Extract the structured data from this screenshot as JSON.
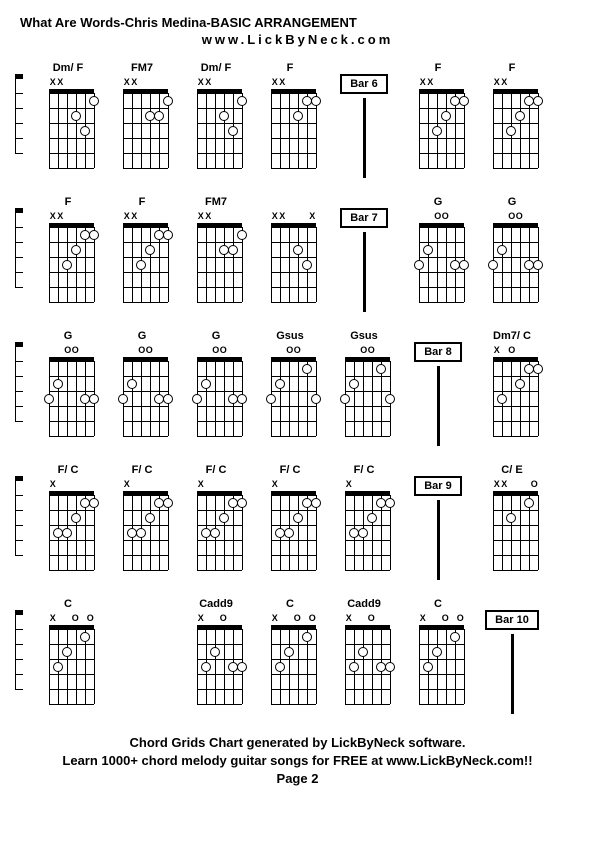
{
  "title": "What Are Words-Chris Medina-BASIC ARRANGEMENT",
  "subtitle": "www.LickByNeck.com",
  "footer_line1": "Chord Grids Chart generated by LickByNeck software.",
  "footer_line2": "Learn 1000+ chord melody guitar songs for FREE at www.LickByNeck.com!!",
  "page_label": "Page 2",
  "grid": {
    "strings": 6,
    "frets": 5,
    "diagram_width": 45,
    "diagram_height": 75
  },
  "rows": [
    {
      "leading_half": true,
      "cells": [
        {
          "type": "chord",
          "name": "Dm/ F",
          "marks": [
            "X",
            "X",
            "",
            "",
            "",
            ""
          ],
          "dots": [
            [
              2,
              0
            ],
            [
              3,
              2
            ],
            [
              4,
              3
            ],
            [
              5,
              1
            ]
          ]
        },
        {
          "type": "chord",
          "name": "FM7",
          "marks": [
            "X",
            "X",
            "",
            "",
            "",
            ""
          ],
          "dots": [
            [
              2,
              0
            ],
            [
              3,
              2
            ],
            [
              4,
              2
            ],
            [
              5,
              1
            ]
          ]
        },
        {
          "type": "chord",
          "name": "Dm/ F",
          "marks": [
            "X",
            "X",
            "",
            "",
            "",
            ""
          ],
          "dots": [
            [
              2,
              0
            ],
            [
              3,
              2
            ],
            [
              4,
              3
            ],
            [
              5,
              1
            ]
          ]
        },
        {
          "type": "chord",
          "name": "F",
          "marks": [
            "X",
            "X",
            "",
            "",
            "",
            ""
          ],
          "dots": [
            [
              2,
              0
            ],
            [
              3,
              2
            ],
            [
              4,
              1
            ],
            [
              5,
              1
            ]
          ]
        },
        {
          "type": "bar",
          "label": "Bar 6"
        },
        {
          "type": "chord",
          "name": "F",
          "marks": [
            "X",
            "X",
            "",
            "",
            "",
            ""
          ],
          "dots": [
            [
              2,
              3
            ],
            [
              3,
              2
            ],
            [
              4,
              1
            ],
            [
              5,
              1
            ]
          ]
        },
        {
          "type": "chord",
          "name": "F",
          "marks": [
            "X",
            "X",
            "",
            "",
            "",
            ""
          ],
          "dots": [
            [
              2,
              3
            ],
            [
              3,
              2
            ],
            [
              4,
              1
            ],
            [
              5,
              1
            ]
          ]
        }
      ]
    },
    {
      "leading_half": true,
      "cells": [
        {
          "type": "chord",
          "name": "F",
          "marks": [
            "X",
            "X",
            "",
            "",
            "",
            ""
          ],
          "dots": [
            [
              2,
              3
            ],
            [
              3,
              2
            ],
            [
              4,
              1
            ],
            [
              5,
              1
            ]
          ]
        },
        {
          "type": "chord",
          "name": "F",
          "marks": [
            "X",
            "X",
            "",
            "",
            "",
            ""
          ],
          "dots": [
            [
              2,
              3
            ],
            [
              3,
              2
            ],
            [
              4,
              1
            ],
            [
              5,
              1
            ]
          ]
        },
        {
          "type": "chord",
          "name": "FM7",
          "marks": [
            "X",
            "X",
            "",
            "",
            "",
            ""
          ],
          "dots": [
            [
              2,
              0
            ],
            [
              3,
              2
            ],
            [
              4,
              2
            ],
            [
              5,
              1
            ]
          ]
        },
        {
          "type": "chord",
          "name": "",
          "marks": [
            "X",
            "X",
            "",
            "",
            "",
            "X"
          ],
          "dots": [
            [
              2,
              0
            ],
            [
              3,
              2
            ],
            [
              4,
              3
            ]
          ]
        },
        {
          "type": "bar",
          "label": "Bar 7"
        },
        {
          "type": "chord",
          "name": "G",
          "marks": [
            "",
            "",
            "O",
            "O",
            "",
            ""
          ],
          "dots": [
            [
              0,
              3
            ],
            [
              1,
              2
            ],
            [
              4,
              3
            ],
            [
              5,
              3
            ]
          ]
        },
        {
          "type": "chord",
          "name": "G",
          "marks": [
            "",
            "",
            "O",
            "O",
            "",
            ""
          ],
          "dots": [
            [
              0,
              3
            ],
            [
              1,
              2
            ],
            [
              4,
              3
            ],
            [
              5,
              3
            ]
          ]
        }
      ]
    },
    {
      "leading_half": true,
      "cells": [
        {
          "type": "chord",
          "name": "G",
          "marks": [
            "",
            "",
            "O",
            "O",
            "",
            ""
          ],
          "dots": [
            [
              0,
              3
            ],
            [
              1,
              2
            ],
            [
              4,
              3
            ],
            [
              5,
              3
            ]
          ]
        },
        {
          "type": "chord",
          "name": "G",
          "marks": [
            "",
            "",
            "O",
            "O",
            "",
            ""
          ],
          "dots": [
            [
              0,
              3
            ],
            [
              1,
              2
            ],
            [
              4,
              3
            ],
            [
              5,
              3
            ]
          ]
        },
        {
          "type": "chord",
          "name": "G",
          "marks": [
            "",
            "",
            "O",
            "O",
            "",
            ""
          ],
          "dots": [
            [
              0,
              3
            ],
            [
              1,
              2
            ],
            [
              4,
              3
            ],
            [
              5,
              3
            ]
          ]
        },
        {
          "type": "chord",
          "name": "Gsus",
          "marks": [
            "",
            "",
            "O",
            "O",
            "",
            ""
          ],
          "dots": [
            [
              0,
              3
            ],
            [
              1,
              2
            ],
            [
              4,
              1
            ],
            [
              5,
              3
            ]
          ]
        },
        {
          "type": "chord",
          "name": "Gsus",
          "marks": [
            "",
            "",
            "O",
            "O",
            "",
            ""
          ],
          "dots": [
            [
              0,
              3
            ],
            [
              1,
              2
            ],
            [
              4,
              1
            ],
            [
              5,
              3
            ]
          ]
        },
        {
          "type": "bar",
          "label": "Bar 8"
        },
        {
          "type": "chord",
          "name": "Dm7/ C",
          "marks": [
            "X",
            "",
            "O",
            "",
            "",
            ""
          ],
          "dots": [
            [
              1,
              3
            ],
            [
              3,
              2
            ],
            [
              4,
              1
            ],
            [
              5,
              1
            ]
          ]
        }
      ]
    },
    {
      "leading_half": true,
      "cells": [
        {
          "type": "chord",
          "name": "F/ C",
          "marks": [
            "X",
            "",
            "",
            "",
            "",
            ""
          ],
          "dots": [
            [
              1,
              3
            ],
            [
              2,
              3
            ],
            [
              3,
              2
            ],
            [
              4,
              1
            ],
            [
              5,
              1
            ]
          ]
        },
        {
          "type": "chord",
          "name": "F/ C",
          "marks": [
            "X",
            "",
            "",
            "",
            "",
            ""
          ],
          "dots": [
            [
              1,
              3
            ],
            [
              2,
              3
            ],
            [
              3,
              2
            ],
            [
              4,
              1
            ],
            [
              5,
              1
            ]
          ]
        },
        {
          "type": "chord",
          "name": "F/ C",
          "marks": [
            "X",
            "",
            "",
            "",
            "",
            ""
          ],
          "dots": [
            [
              1,
              3
            ],
            [
              2,
              3
            ],
            [
              3,
              2
            ],
            [
              4,
              1
            ],
            [
              5,
              1
            ]
          ]
        },
        {
          "type": "chord",
          "name": "F/ C",
          "marks": [
            "X",
            "",
            "",
            "",
            "",
            ""
          ],
          "dots": [
            [
              1,
              3
            ],
            [
              2,
              3
            ],
            [
              3,
              2
            ],
            [
              4,
              1
            ],
            [
              5,
              1
            ]
          ]
        },
        {
          "type": "chord",
          "name": "F/ C",
          "marks": [
            "X",
            "",
            "",
            "",
            "",
            ""
          ],
          "dots": [
            [
              1,
              3
            ],
            [
              2,
              3
            ],
            [
              3,
              2
            ],
            [
              4,
              1
            ],
            [
              5,
              1
            ]
          ]
        },
        {
          "type": "bar",
          "label": "Bar 9"
        },
        {
          "type": "chord",
          "name": "C/ E",
          "marks": [
            "X",
            "X",
            "",
            "",
            "",
            "O"
          ],
          "dots": [
            [
              2,
              2
            ],
            [
              3,
              0
            ],
            [
              4,
              1
            ]
          ]
        }
      ]
    },
    {
      "leading_half": true,
      "cells": [
        {
          "type": "chord",
          "name": "C",
          "marks": [
            "X",
            "",
            "",
            "O",
            "",
            "O"
          ],
          "dots": [
            [
              1,
              3
            ],
            [
              2,
              2
            ],
            [
              4,
              1
            ]
          ]
        },
        {
          "type": "blank"
        },
        {
          "type": "chord",
          "name": "Cadd9",
          "marks": [
            "X",
            "",
            "",
            "O",
            "",
            ""
          ],
          "dots": [
            [
              1,
              3
            ],
            [
              2,
              2
            ],
            [
              4,
              3
            ],
            [
              5,
              3
            ]
          ]
        },
        {
          "type": "chord",
          "name": "C",
          "marks": [
            "X",
            "",
            "",
            "O",
            "",
            "O"
          ],
          "dots": [
            [
              1,
              3
            ],
            [
              2,
              2
            ],
            [
              4,
              1
            ]
          ]
        },
        {
          "type": "chord",
          "name": "Cadd9",
          "marks": [
            "X",
            "",
            "",
            "O",
            "",
            ""
          ],
          "dots": [
            [
              1,
              3
            ],
            [
              2,
              2
            ],
            [
              4,
              3
            ],
            [
              5,
              3
            ]
          ]
        },
        {
          "type": "chord",
          "name": "C",
          "marks": [
            "X",
            "",
            "",
            "O",
            "",
            "O"
          ],
          "dots": [
            [
              1,
              3
            ],
            [
              2,
              2
            ],
            [
              4,
              1
            ]
          ]
        },
        {
          "type": "bar",
          "label": "Bar 10"
        }
      ]
    }
  ]
}
